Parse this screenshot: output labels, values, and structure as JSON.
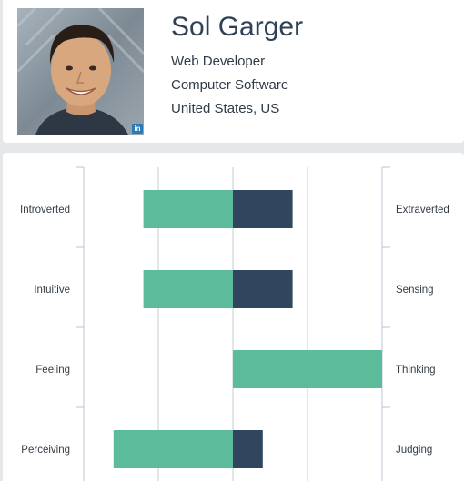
{
  "profile": {
    "name": "Sol Garger",
    "title": "Web Developer",
    "industry": "Computer Software",
    "location": "United States, US",
    "badge": "in"
  },
  "colors": {
    "left_bar": "#5bbb9a",
    "right_bar": "#30455e",
    "grid": "#c5ccd3",
    "axis": "#b9c6d2"
  },
  "chart_data": {
    "type": "bar",
    "orientation": "horizontal-diverging",
    "xlim": [
      -100,
      100
    ],
    "grid": true,
    "rows": [
      {
        "left_label": "Introverted",
        "right_label": "Extraverted",
        "left_value": 60,
        "right_value": 40
      },
      {
        "left_label": "Intuitive",
        "right_label": "Sensing",
        "left_value": 60,
        "right_value": 40
      },
      {
        "left_label": "Feeling",
        "right_label": "Thinking",
        "left_value": 0,
        "right_value": 100
      },
      {
        "left_label": "Perceiving",
        "right_label": "Judging",
        "left_value": 80,
        "right_value": 20
      }
    ]
  }
}
